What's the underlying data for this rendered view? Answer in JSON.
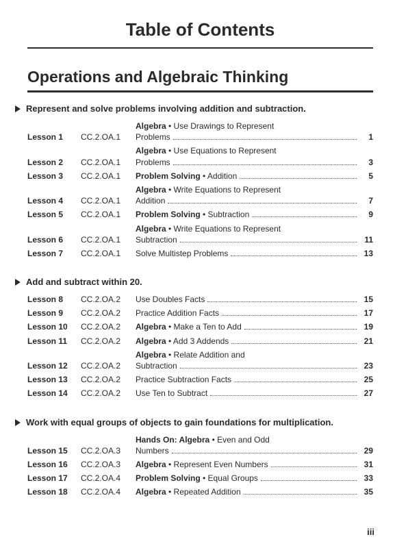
{
  "page_title": "Table of Contents",
  "chapter_title": "Operations and Algebraic Thinking",
  "folio": "iii",
  "sections": [
    {
      "title": "Represent and solve problems involving addition and subtraction.",
      "lessons": [
        {
          "label": "Lesson 1",
          "std": "CC.2.OA.1",
          "bold": "Algebra",
          "rest_a": " • Use Drawings to Represent",
          "rest_b": "Problems",
          "page": "1"
        },
        {
          "label": "Lesson 2",
          "std": "CC.2.OA.1",
          "bold": "Algebra",
          "rest_a": " • Use Equations to Represent",
          "rest_b": "Problems",
          "page": "3"
        },
        {
          "label": "Lesson 3",
          "std": "CC.2.OA.1",
          "bold": "Problem Solving",
          "rest_a": " • Addition",
          "rest_b": "",
          "page": "5"
        },
        {
          "label": "Lesson 4",
          "std": "CC.2.OA.1",
          "bold": "Algebra",
          "rest_a": " • Write Equations to Represent",
          "rest_b": "Addition",
          "page": "7"
        },
        {
          "label": "Lesson 5",
          "std": "CC.2.OA.1",
          "bold": "Problem Solving",
          "rest_a": " • Subtraction",
          "rest_b": "",
          "page": "9"
        },
        {
          "label": "Lesson 6",
          "std": "CC.2.OA.1",
          "bold": "Algebra",
          "rest_a": " • Write Equations to Represent",
          "rest_b": "Subtraction",
          "page": "11"
        },
        {
          "label": "Lesson 7",
          "std": "CC.2.OA.1",
          "bold": "",
          "rest_a": "Solve Multistep Problems",
          "rest_b": "",
          "page": "13"
        }
      ]
    },
    {
      "title": "Add and subtract within 20.",
      "lessons": [
        {
          "label": "Lesson 8",
          "std": "CC.2.OA.2",
          "bold": "",
          "rest_a": "Use Doubles Facts",
          "rest_b": "",
          "page": "15"
        },
        {
          "label": "Lesson 9",
          "std": "CC.2.OA.2",
          "bold": "",
          "rest_a": "Practice Addition Facts",
          "rest_b": "",
          "page": "17"
        },
        {
          "label": "Lesson 10",
          "std": "CC.2.OA.2",
          "bold": "Algebra",
          "rest_a": " • Make a Ten to Add",
          "rest_b": "",
          "page": "19"
        },
        {
          "label": "Lesson 11",
          "std": "CC.2.OA.2",
          "bold": "Algebra",
          "rest_a": " • Add 3 Addends",
          "rest_b": "",
          "page": "21"
        },
        {
          "label": "Lesson 12",
          "std": "CC.2.OA.2",
          "bold": "Algebra",
          "rest_a": " • Relate Addition and",
          "rest_b": "Subtraction",
          "page": "23"
        },
        {
          "label": "Lesson 13",
          "std": "CC.2.OA.2",
          "bold": "",
          "rest_a": "Practice Subtraction Facts",
          "rest_b": "",
          "page": "25"
        },
        {
          "label": "Lesson 14",
          "std": "CC.2.OA.2",
          "bold": "",
          "rest_a": "Use Ten to Subtract",
          "rest_b": "",
          "page": "27"
        }
      ]
    },
    {
      "title": "Work with equal groups of objects to gain foundations for multiplication.",
      "lessons": [
        {
          "label": "Lesson 15",
          "std": "CC.2.OA.3",
          "bold": "Hands On: Algebra",
          "rest_a": " • Even and Odd",
          "rest_b": "Numbers",
          "page": "29"
        },
        {
          "label": "Lesson 16",
          "std": "CC.2.OA.3",
          "bold": "Algebra",
          "rest_a": " • Represent Even Numbers",
          "rest_b": "",
          "page": "31"
        },
        {
          "label": "Lesson 17",
          "std": "CC.2.OA.4",
          "bold": "Problem Solving",
          "rest_a": " • Equal Groups",
          "rest_b": "",
          "page": "33"
        },
        {
          "label": "Lesson 18",
          "std": "CC.2.OA.4",
          "bold": "Algebra",
          "rest_a": " • Repeated Addition",
          "rest_b": "",
          "page": "35"
        }
      ]
    }
  ]
}
